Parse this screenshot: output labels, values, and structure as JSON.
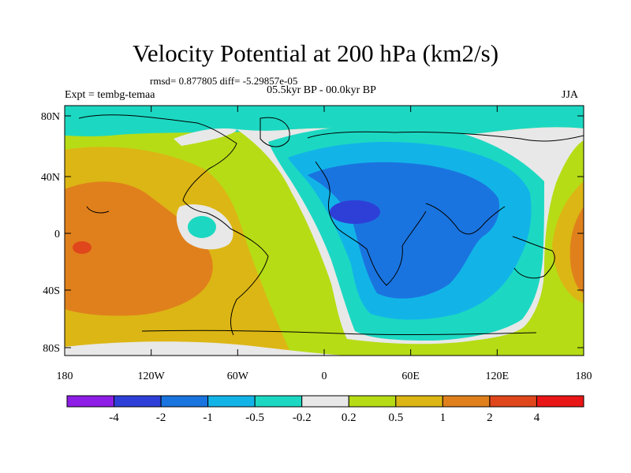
{
  "header": {
    "title": "Velocity Potential at 200 hPa (km2/s)",
    "stats": "rmsd= 0.877805 diff= -5.29857e-05",
    "period": "05.5kyr BP - 00.0kyr BP",
    "experiment": "Expt = tembg-temaa",
    "season": "JJA"
  },
  "axes": {
    "y_ticks": [
      "80N",
      "40N",
      "0",
      "40S",
      "80S"
    ],
    "x_ticks": [
      "180",
      "120W",
      "60W",
      "0",
      "60E",
      "120E",
      "180"
    ]
  },
  "colorbar": {
    "labels": [
      "-4",
      "-2",
      "-1",
      "-0.5",
      "-0.2",
      "0.2",
      "0.5",
      "1",
      "2",
      "4"
    ],
    "colors": [
      "#8e1ee6",
      "#2e3fd8",
      "#1a74df",
      "#12b4e8",
      "#1cd8c2",
      "#e8e8e8",
      "#b6dc16",
      "#dcb614",
      "#e0801c",
      "#e0461c",
      "#e81616"
    ]
  }
}
